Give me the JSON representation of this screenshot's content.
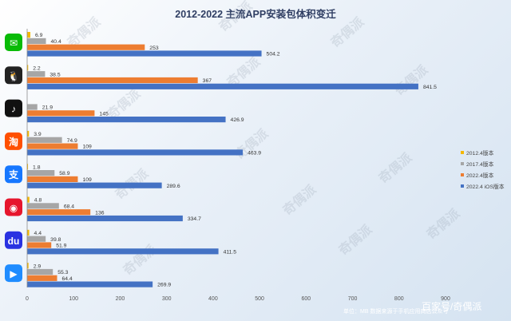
{
  "chart_data": {
    "type": "bar",
    "orientation": "horizontal",
    "title": "2012-2022 主流APP安装包体积变迁",
    "categories": [
      "微信",
      "QQ",
      "抖音",
      "淘宝",
      "支付宝",
      "微博",
      "百度",
      "优酷"
    ],
    "series": [
      {
        "name": "2012.4版本",
        "color": "#f5b800",
        "values": [
          6.9,
          2.2,
          null,
          3.9,
          1.8,
          4.8,
          4.4,
          2.9
        ]
      },
      {
        "name": "2017.4版本",
        "color": "#a6a6a6",
        "values": [
          40.4,
          38.5,
          21.9,
          74.9,
          58.9,
          68.4,
          39.8,
          55.3
        ]
      },
      {
        "name": "2022.4版本",
        "color": "#ed7d31",
        "values": [
          253,
          367,
          145,
          109,
          109,
          136,
          51.9,
          64.4
        ]
      },
      {
        "name": "2022.4 iOS版本",
        "color": "#4472c4",
        "values": [
          504.2,
          841.5,
          426.9,
          463.9,
          289.6,
          334.7,
          411.5,
          269.9
        ]
      }
    ],
    "xlim": [
      0,
      900
    ],
    "xticks": [
      0,
      100,
      200,
      300,
      400,
      500,
      600,
      700,
      800,
      900
    ],
    "legend_position": "right",
    "grid": false
  },
  "icons": [
    {
      "name": "wechat-icon",
      "color": "#09bb07",
      "glyph": "✉"
    },
    {
      "name": "qq-icon",
      "color": "#222222",
      "glyph": "🐧"
    },
    {
      "name": "douyin-icon",
      "color": "#111111",
      "glyph": "♪"
    },
    {
      "name": "taobao-icon",
      "color": "#ff5000",
      "glyph": "淘"
    },
    {
      "name": "alipay-icon",
      "color": "#1677ff",
      "glyph": "支"
    },
    {
      "name": "weibo-icon",
      "color": "#e6162d",
      "glyph": "◉"
    },
    {
      "name": "baidu-icon",
      "color": "#2932e1",
      "glyph": "du"
    },
    {
      "name": "youku-icon",
      "color": "#1f8cff",
      "glyph": "▶"
    }
  ],
  "watermark": "奇偶派",
  "footer": {
    "source": "单位：MB 数据来源于手机应用商店公众号",
    "brand": "百家号/奇偶派"
  }
}
